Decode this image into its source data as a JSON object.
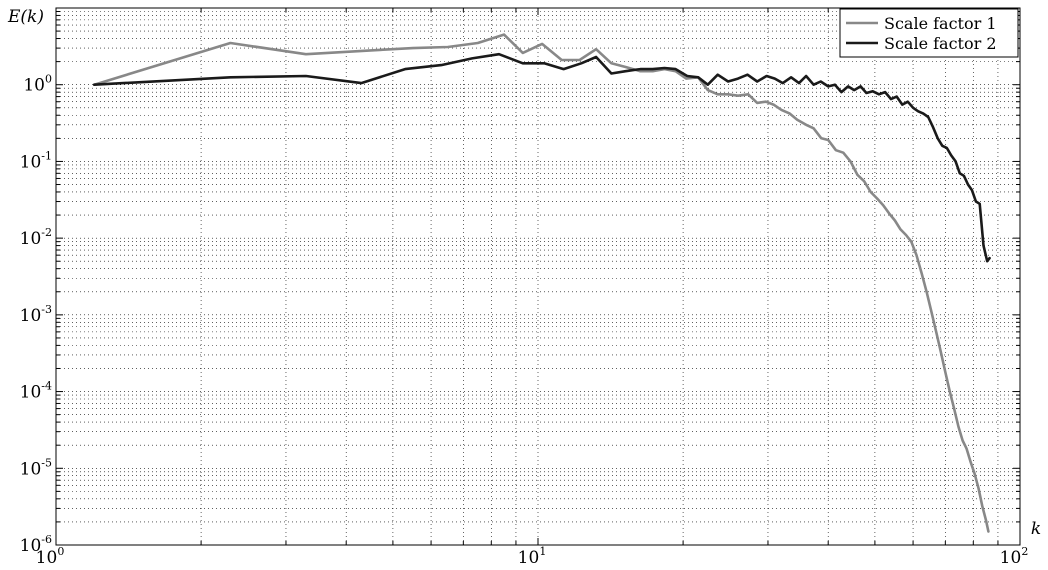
{
  "chart_data": {
    "type": "line",
    "xlabel": "k",
    "ylabel": "E(k)",
    "xscale": "log",
    "yscale": "log",
    "xlim": [
      1,
      100
    ],
    "ylim": [
      1e-06,
      10
    ],
    "grid": true,
    "legend_position": "top-right",
    "x_ticks": [
      {
        "value": 1,
        "base": "10",
        "exp": "0"
      },
      {
        "value": 10,
        "base": "10",
        "exp": "1"
      },
      {
        "value": 100,
        "base": "10",
        "exp": "2"
      }
    ],
    "y_ticks": [
      {
        "value": 1,
        "base": "10",
        "exp": "0"
      },
      {
        "value": 0.1,
        "base": "10",
        "exp": "-1"
      },
      {
        "value": 0.01,
        "base": "10",
        "exp": "-2"
      },
      {
        "value": 0.001,
        "base": "10",
        "exp": "-3"
      },
      {
        "value": 0.0001,
        "base": "10",
        "exp": "-4"
      },
      {
        "value": 1e-05,
        "base": "10",
        "exp": "-5"
      },
      {
        "value": 1e-06,
        "base": "10",
        "exp": "-6"
      }
    ],
    "series": [
      {
        "name": "Scale factor 1",
        "color": "#888888",
        "points": [
          [
            1.2,
            1.0
          ],
          [
            2.3,
            3.5
          ],
          [
            3.3,
            2.5
          ],
          [
            4.5,
            2.8
          ],
          [
            5.5,
            3.0
          ],
          [
            6.5,
            3.1
          ],
          [
            7.5,
            3.5
          ],
          [
            8.5,
            4.5
          ],
          [
            9.3,
            2.6
          ],
          [
            10.2,
            3.4
          ],
          [
            11.2,
            2.1
          ],
          [
            12.2,
            2.1
          ],
          [
            13.2,
            2.9
          ],
          [
            14.2,
            1.9
          ],
          [
            15.2,
            1.7
          ],
          [
            16.3,
            1.5
          ],
          [
            17.3,
            1.5
          ],
          [
            18.3,
            1.6
          ],
          [
            19.3,
            1.5
          ],
          [
            20.3,
            1.2
          ],
          [
            21.5,
            1.25
          ],
          [
            22.5,
            0.85
          ],
          [
            23.6,
            0.75
          ],
          [
            24.8,
            0.75
          ],
          [
            26.0,
            0.72
          ],
          [
            27.3,
            0.75
          ],
          [
            28.5,
            0.58
          ],
          [
            29.7,
            0.6
          ],
          [
            30.8,
            0.55
          ],
          [
            32.0,
            0.47
          ],
          [
            33.3,
            0.42
          ],
          [
            34.5,
            0.35
          ],
          [
            36.0,
            0.3
          ],
          [
            37.3,
            0.27
          ],
          [
            38.7,
            0.2
          ],
          [
            40.0,
            0.19
          ],
          [
            41.5,
            0.14
          ],
          [
            43.0,
            0.13
          ],
          [
            44.5,
            0.1
          ],
          [
            46.0,
            0.067
          ],
          [
            47.5,
            0.055
          ],
          [
            49.0,
            0.04
          ],
          [
            50.5,
            0.033
          ],
          [
            52.0,
            0.027
          ],
          [
            53.5,
            0.021
          ],
          [
            55.0,
            0.017
          ],
          [
            56.5,
            0.013
          ],
          [
            58.0,
            0.011
          ],
          [
            59.5,
            0.009
          ],
          [
            61.0,
            0.006
          ],
          [
            62.5,
            0.0035
          ],
          [
            64.0,
            0.002
          ],
          [
            65.5,
            0.0011
          ],
          [
            67.0,
            0.0006
          ],
          [
            68.5,
            0.00033
          ],
          [
            70.0,
            0.00018
          ],
          [
            71.5,
            0.0001
          ],
          [
            73.0,
            6e-05
          ],
          [
            74.5,
            3.5e-05
          ],
          [
            76.0,
            2.3e-05
          ],
          [
            77.5,
            1.8e-05
          ],
          [
            79.0,
            1.2e-05
          ],
          [
            80.5,
            8.5e-06
          ],
          [
            82.0,
            5.5e-06
          ],
          [
            83.5,
            3.2e-06
          ],
          [
            85.0,
            2.1e-06
          ],
          [
            86.0,
            1.5e-06
          ]
        ]
      },
      {
        "name": "Scale factor 2",
        "color": "#1a1a1a",
        "points": [
          [
            1.2,
            1.0
          ],
          [
            2.3,
            1.25
          ],
          [
            3.3,
            1.3
          ],
          [
            4.3,
            1.05
          ],
          [
            5.3,
            1.6
          ],
          [
            6.3,
            1.8
          ],
          [
            7.3,
            2.2
          ],
          [
            8.3,
            2.5
          ],
          [
            9.3,
            1.9
          ],
          [
            10.3,
            1.9
          ],
          [
            11.3,
            1.6
          ],
          [
            12.3,
            1.9
          ],
          [
            13.2,
            2.3
          ],
          [
            14.2,
            1.4
          ],
          [
            15.2,
            1.5
          ],
          [
            16.3,
            1.6
          ],
          [
            17.3,
            1.6
          ],
          [
            18.3,
            1.65
          ],
          [
            19.3,
            1.6
          ],
          [
            20.4,
            1.3
          ],
          [
            21.5,
            1.25
          ],
          [
            22.5,
            1.0
          ],
          [
            23.6,
            1.35
          ],
          [
            24.8,
            1.1
          ],
          [
            26.0,
            1.2
          ],
          [
            27.2,
            1.35
          ],
          [
            28.5,
            1.1
          ],
          [
            29.8,
            1.3
          ],
          [
            31.0,
            1.2
          ],
          [
            32.2,
            1.05
          ],
          [
            33.5,
            1.25
          ],
          [
            34.8,
            1.05
          ],
          [
            36.0,
            1.3
          ],
          [
            37.3,
            1.0
          ],
          [
            38.6,
            1.1
          ],
          [
            40.0,
            0.95
          ],
          [
            41.3,
            1.0
          ],
          [
            42.6,
            0.8
          ],
          [
            44.0,
            0.95
          ],
          [
            45.3,
            0.85
          ],
          [
            46.7,
            0.95
          ],
          [
            48.0,
            0.78
          ],
          [
            49.5,
            0.82
          ],
          [
            51.0,
            0.75
          ],
          [
            52.5,
            0.8
          ],
          [
            54.0,
            0.65
          ],
          [
            55.5,
            0.7
          ],
          [
            57.0,
            0.55
          ],
          [
            58.5,
            0.6
          ],
          [
            60.0,
            0.5
          ],
          [
            61.5,
            0.45
          ],
          [
            63.0,
            0.42
          ],
          [
            64.5,
            0.38
          ],
          [
            66.0,
            0.28
          ],
          [
            67.5,
            0.2
          ],
          [
            69.0,
            0.16
          ],
          [
            70.5,
            0.15
          ],
          [
            72.0,
            0.12
          ],
          [
            73.5,
            0.1
          ],
          [
            75.0,
            0.07
          ],
          [
            76.5,
            0.065
          ],
          [
            78.0,
            0.05
          ],
          [
            79.5,
            0.042
          ],
          [
            81.0,
            0.03
          ],
          [
            82.5,
            0.028
          ],
          [
            84.0,
            0.008
          ],
          [
            85.5,
            0.005
          ],
          [
            86.5,
            0.0055
          ]
        ]
      }
    ]
  }
}
